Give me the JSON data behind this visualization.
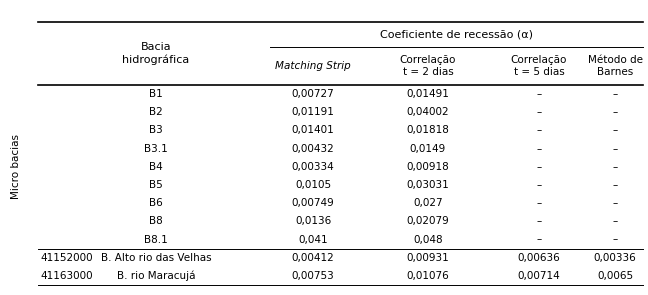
{
  "title": "Coeficiente de recessão (α)",
  "col_headers": [
    "Matching Strip",
    "Correlação\nt = 2 dias",
    "Correlação\nt = 5 dias",
    "Método de\nBarnes"
  ],
  "row_label_col1": [
    "",
    "",
    "",
    "",
    "",
    "",
    "",
    "",
    "",
    "41152000",
    "41163000"
  ],
  "row_label_col2": [
    "B1",
    "B2",
    "B3",
    "B3.1",
    "B4",
    "B5",
    "B6",
    "B8",
    "B8.1",
    "B. Alto rio das Velhas",
    "B. rio Maracujá"
  ],
  "data": [
    [
      "0,00727",
      "0,01491",
      "–",
      "–"
    ],
    [
      "0,01191",
      "0,04002",
      "–",
      "–"
    ],
    [
      "0,01401",
      "0,01818",
      "–",
      "–"
    ],
    [
      "0,00432",
      "0,0149",
      "–",
      "–"
    ],
    [
      "0,00334",
      "0,00918",
      "–",
      "–"
    ],
    [
      "0,0105",
      "0,03031",
      "–",
      "–"
    ],
    [
      "0,00749",
      "0,027",
      "–",
      "–"
    ],
    [
      "0,0136",
      "0,02079",
      "–",
      "–"
    ],
    [
      "0,041",
      "0,048",
      "–",
      "–"
    ],
    [
      "0,00412",
      "0,00931",
      "0,00636",
      "0,00336"
    ],
    [
      "0,00753",
      "0,01076",
      "0,00714",
      "0,0065"
    ]
  ],
  "side_label": "Micro bacias",
  "background_color": "#ffffff",
  "font_size": 7.5,
  "header_font_size": 8.0
}
